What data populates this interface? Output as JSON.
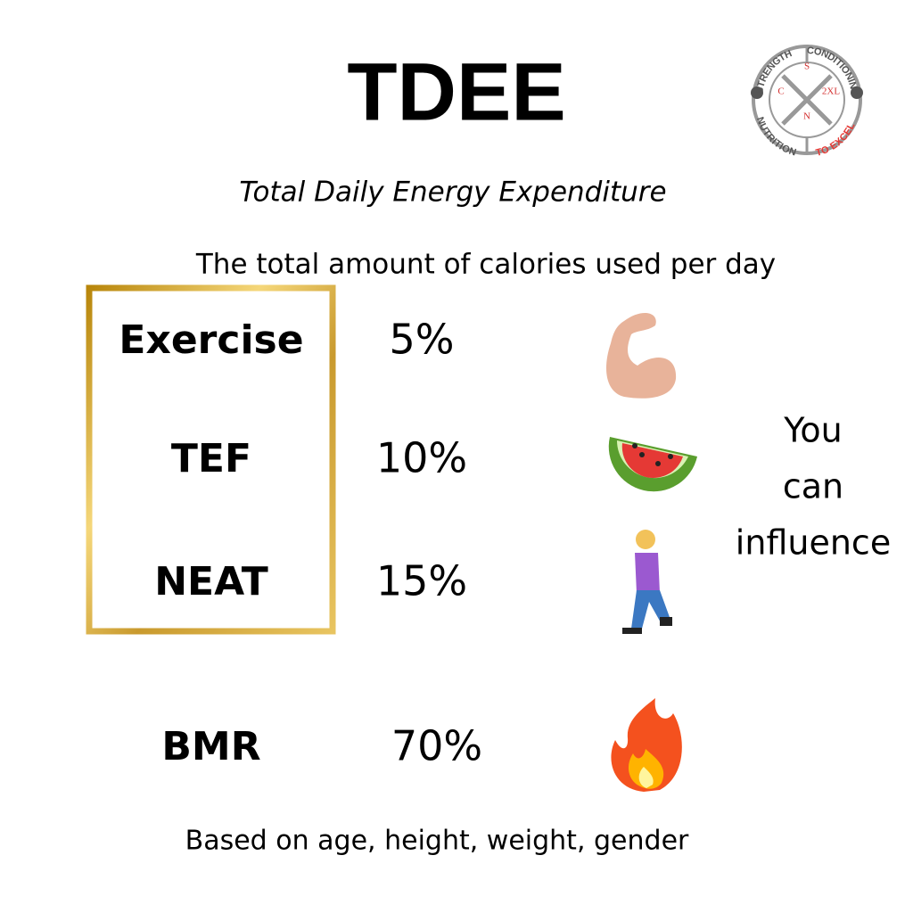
{
  "header": {
    "title": "TDEE",
    "subtitle": "Total Daily Energy Expenditure",
    "description": "The total amount of calories used per day"
  },
  "logo": {
    "top_left": "STRENGTH",
    "top_right": "CONDITIONING",
    "bottom_left": "NUTRITION",
    "bottom_right": "TO EXCEL",
    "letters": [
      "S",
      "C",
      "N",
      "2XL"
    ]
  },
  "rows": [
    {
      "label": "Exercise",
      "percent": "5%"
    },
    {
      "label": "TEF",
      "percent": "10%"
    },
    {
      "label": "NEAT",
      "percent": "15%"
    },
    {
      "label": "BMR",
      "percent": "70%"
    }
  ],
  "side_note": [
    "You",
    "can",
    "influence"
  ],
  "footer": "Based on age, height, weight, gender"
}
